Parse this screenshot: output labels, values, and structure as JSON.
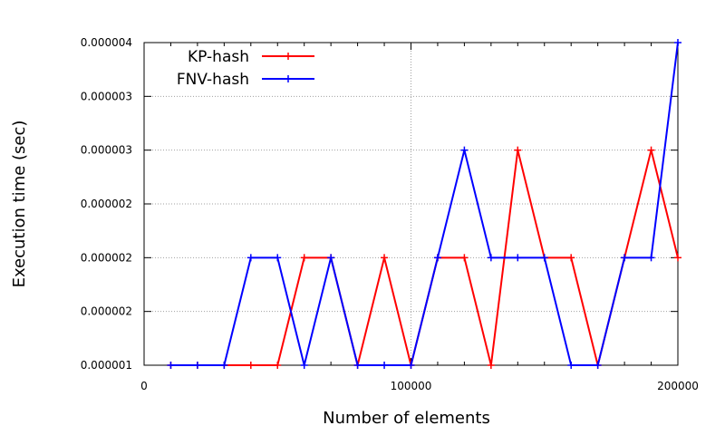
{
  "chart_data": {
    "type": "line",
    "title": "",
    "xlabel": "Number of elements",
    "ylabel": "Execution time (sec)",
    "xlim": [
      0,
      200000
    ],
    "ylim": [
      0,
      6
    ],
    "x_ticks": [
      0,
      100000,
      200000
    ],
    "x_tick_labels": [
      "0",
      "100000",
      "200000"
    ],
    "y_ticks": [
      0,
      1,
      2,
      3,
      4,
      5,
      6
    ],
    "y_tick_labels": [
      "0.000001",
      "0.000002",
      "0.000002",
      "0.000002",
      "0.000003",
      "0.000003",
      "0.000004"
    ],
    "grid": true,
    "legend_position": "top-left",
    "x": [
      10000,
      20000,
      30000,
      40000,
      50000,
      60000,
      70000,
      80000,
      90000,
      100000,
      110000,
      120000,
      130000,
      140000,
      150000,
      160000,
      170000,
      180000,
      190000,
      200000
    ],
    "series": [
      {
        "name": "KP-hash",
        "color": "#ff0000",
        "values": [
          0,
          0,
          0,
          0,
          0,
          2,
          2,
          0,
          2,
          0,
          2,
          2,
          0,
          4,
          2,
          2,
          0,
          2,
          4,
          2
        ]
      },
      {
        "name": "FNV-hash",
        "color": "#0000ff",
        "values": [
          0,
          0,
          0,
          2,
          2,
          0,
          2,
          0,
          0,
          0,
          2,
          4,
          2,
          2,
          2,
          0,
          0,
          2,
          2,
          6
        ]
      }
    ]
  }
}
